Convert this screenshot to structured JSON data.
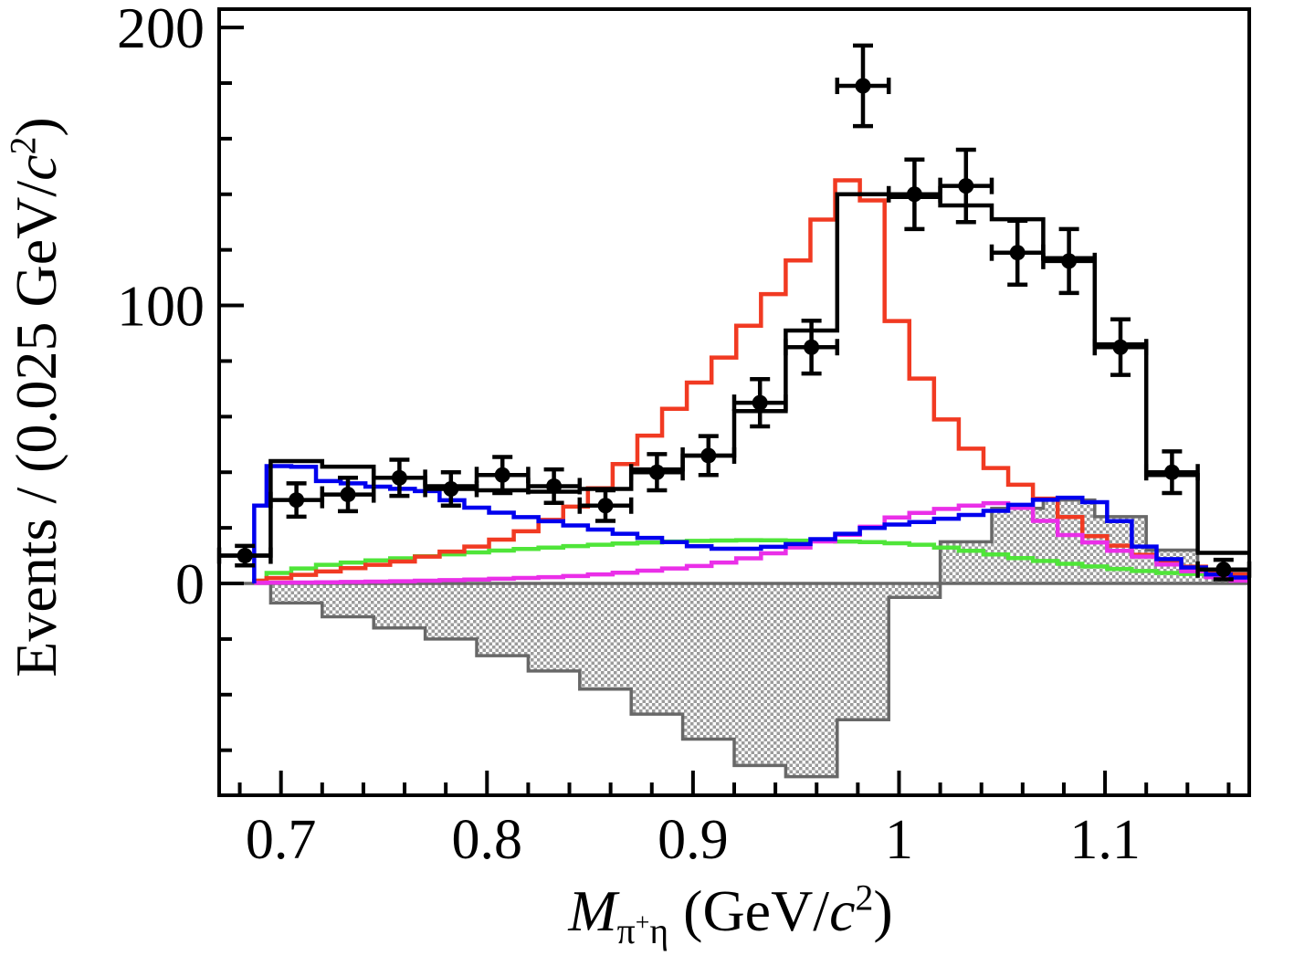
{
  "figure": {
    "y_axis_title": {
      "prefix": "Events / (0.025 GeV/",
      "c": "c",
      "exp": "2",
      "close": ")"
    },
    "x_axis_title": {
      "m": "M",
      "sub_pi": "π",
      "sub_plus": "+",
      "sub_eta": "η",
      "open": " (GeV/",
      "c": "c",
      "exp": "2",
      "close": ")"
    }
  },
  "chart_data": {
    "type": "histogram",
    "title": "",
    "xlabel": "M_{pi+ eta} (GeV/c^2)",
    "ylabel": "Events / (0.025 GeV/c^2)",
    "x_range": [
      0.67,
      1.17
    ],
    "y_range": [
      -76.2,
      206.6
    ],
    "grid": false,
    "legend": "none",
    "x_ticks": [
      {
        "v": 0.7,
        "label": "0.7"
      },
      {
        "v": 0.8,
        "label": "0.8"
      },
      {
        "v": 0.9,
        "label": "0.9"
      },
      {
        "v": 1.0,
        "label": "1"
      },
      {
        "v": 1.1,
        "label": "1.1"
      }
    ],
    "x_minor_step": 0.02,
    "y_ticks": [
      {
        "v": 0,
        "label": "0"
      },
      {
        "v": 100,
        "label": "100"
      },
      {
        "v": 200,
        "label": "200"
      }
    ],
    "y_minor_step": 20,
    "x_start": 0.67,
    "bin_width": 0.025,
    "n_bins": 20,
    "bin_centers": [
      0.6825,
      0.7075,
      0.7325,
      0.7575,
      0.7825,
      0.8075,
      0.8325,
      0.8575,
      0.8825,
      0.9075,
      0.9325,
      0.9575,
      0.9825,
      1.0075,
      1.0325,
      1.0575,
      1.0825,
      1.1075,
      1.1325,
      1.1575
    ],
    "data_points": {
      "values": [
        10,
        30,
        32,
        38,
        34,
        39,
        35,
        28,
        40,
        46,
        65,
        85,
        179,
        140,
        143,
        119,
        116,
        85,
        40,
        5
      ],
      "y_errors": [
        3.5,
        6,
        6,
        6.5,
        6,
        6.5,
        6,
        5.5,
        6.5,
        7,
        8.5,
        9.5,
        14.5,
        12.5,
        13,
        11.5,
        11.5,
        10,
        7.5,
        3.5
      ],
      "x_error": 0.0125
    },
    "total_fit_histogram": [
      10,
      44,
      42,
      38,
      35,
      33.5,
      33,
      34,
      41,
      46,
      62,
      91,
      140,
      139,
      136,
      131,
      117,
      86,
      39,
      11
    ],
    "interference_histogram": [
      0,
      -7,
      -12,
      -16,
      -20,
      -26,
      -31.5,
      -38,
      -47,
      -56,
      -65.5,
      -69.5,
      -49,
      -5,
      15,
      27,
      30,
      24,
      12,
      4
    ],
    "curves": {
      "signal_red": {
        "x": [
          0.687,
          0.7,
          0.72,
          0.74,
          0.76,
          0.78,
          0.8,
          0.82,
          0.84,
          0.86,
          0.88,
          0.9,
          0.92,
          0.93,
          0.94,
          0.95,
          0.96,
          0.97,
          0.975,
          0.98,
          0.985,
          0.99,
          0.995,
          1.0,
          1.01,
          1.02,
          1.03,
          1.04,
          1.05,
          1.06,
          1.07,
          1.08,
          1.09,
          1.1,
          1.11,
          1.12,
          1.13,
          1.14,
          1.15,
          1.16,
          1.17
        ],
        "y": [
          1,
          2,
          4,
          6,
          8,
          11,
          14,
          19,
          26,
          37,
          54,
          70,
          85,
          96,
          105,
          115,
          127,
          140,
          145,
          147,
          143,
          130,
          112,
          90,
          75,
          62,
          52,
          45,
          40,
          35,
          31,
          26,
          19,
          15,
          13,
          10,
          8,
          6.5,
          5,
          4,
          3
        ]
      },
      "background_blue": {
        "x": [
          0.687,
          0.69,
          0.695,
          0.7,
          0.71,
          0.72,
          0.73,
          0.75,
          0.77,
          0.79,
          0.81,
          0.83,
          0.85,
          0.87,
          0.89,
          0.91,
          0.93,
          0.95,
          0.97,
          0.99,
          1.01,
          1.03,
          1.05,
          1.06,
          1.07,
          1.08,
          1.09,
          1.1,
          1.11,
          1.12,
          1.13,
          1.14,
          1.15,
          1.16,
          1.17
        ],
        "y": [
          28,
          33,
          41,
          42.5,
          42.5,
          37,
          36.5,
          34.5,
          33.5,
          28,
          25,
          22.5,
          20,
          17.5,
          15,
          12.5,
          12.5,
          14,
          17,
          20.5,
          22,
          24,
          26.5,
          28.5,
          30,
          31,
          30.5,
          28,
          20,
          12.5,
          9,
          6.5,
          4,
          2.5,
          2
        ]
      },
      "background_green": {
        "x": [
          0.687,
          0.7,
          0.72,
          0.75,
          0.78,
          0.81,
          0.84,
          0.87,
          0.9,
          0.93,
          0.96,
          0.99,
          1.01,
          1.03,
          1.06,
          1.09,
          1.11,
          1.13,
          1.15,
          1.17
        ],
        "y": [
          1,
          4,
          6.5,
          8.5,
          10.3,
          12,
          13.3,
          14.5,
          15.3,
          15.6,
          15.3,
          14.8,
          14,
          12.3,
          9,
          6.5,
          5,
          3.8,
          3.2,
          2.8
        ]
      },
      "background_magenta": {
        "x": [
          0.687,
          0.72,
          0.76,
          0.8,
          0.84,
          0.87,
          0.9,
          0.92,
          0.94,
          0.96,
          0.98,
          1.0,
          1.02,
          1.04,
          1.05,
          1.06,
          1.07,
          1.08,
          1.09,
          1.1,
          1.11,
          1.12,
          1.13,
          1.14,
          1.15,
          1.16,
          1.17
        ],
        "y": [
          0.2,
          0.4,
          0.8,
          1.5,
          2.5,
          4,
          6,
          8,
          11,
          14.5,
          18.5,
          24,
          26.5,
          28.5,
          29,
          27,
          23,
          18,
          16,
          13.5,
          11,
          9.5,
          7,
          5,
          3,
          1.5,
          0.8
        ]
      }
    },
    "colors": {
      "data": "#000000",
      "total_fit": "#000000",
      "signal_red": "#f13a22",
      "background_blue": "#0000ee",
      "background_green": "#4fe539",
      "background_magenta": "#ea2fe8",
      "interference_fill": "#9b9b9b",
      "interference_outline": "#686868",
      "frame": "#000000"
    }
  }
}
